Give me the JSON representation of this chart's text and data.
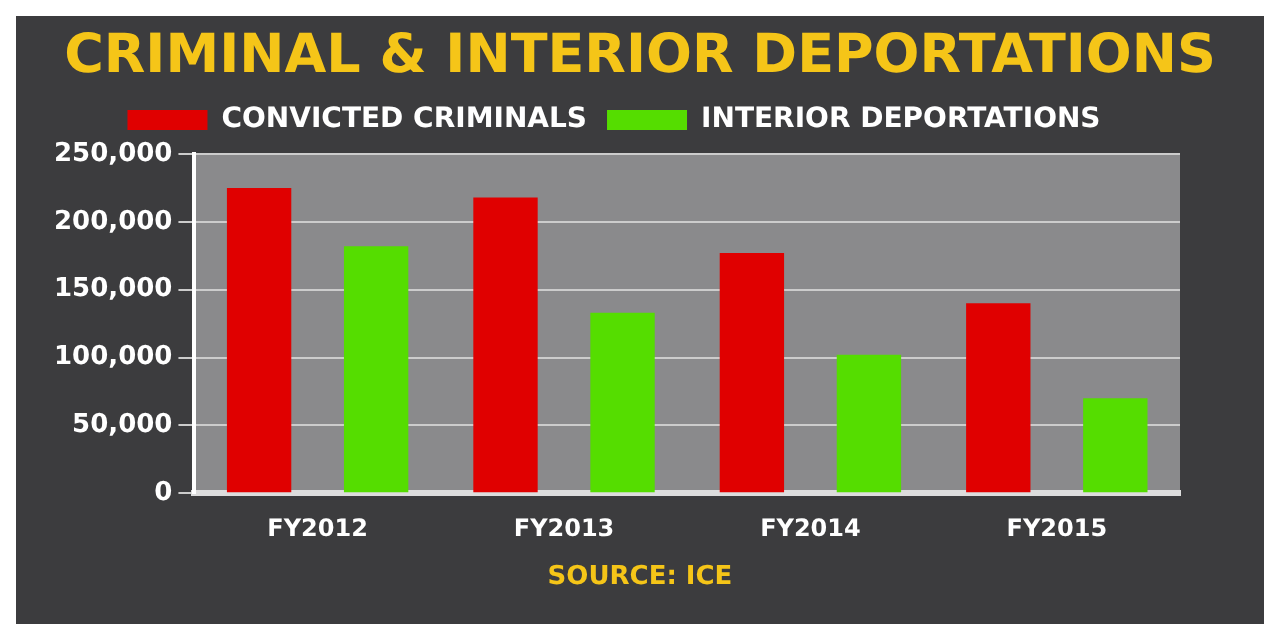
{
  "chart_data": {
    "type": "bar",
    "title": "CRIMINAL & INTERIOR DEPORTATIONS",
    "categories": [
      "FY2012",
      "FY2013",
      "FY2014",
      "FY2015"
    ],
    "series": [
      {
        "name": "CONVICTED CRIMINALS",
        "color": "#e00000",
        "values": [
          225000,
          218000,
          177000,
          140000
        ]
      },
      {
        "name": "INTERIOR DEPORTATIONS",
        "color": "#55dd00",
        "values": [
          182000,
          133000,
          102000,
          70000
        ]
      }
    ],
    "ylim": [
      0,
      250000
    ],
    "yticks": [
      {
        "value": 0,
        "label": "0"
      },
      {
        "value": 50000,
        "label": "50,000"
      },
      {
        "value": 100000,
        "label": "100,000"
      },
      {
        "value": 150000,
        "label": "150,000"
      },
      {
        "value": 200000,
        "label": "200,000"
      },
      {
        "value": 250000,
        "label": "250,000"
      }
    ],
    "grid": "y",
    "legend": "top",
    "annotations": [
      "SOURCE: ICE"
    ]
  }
}
